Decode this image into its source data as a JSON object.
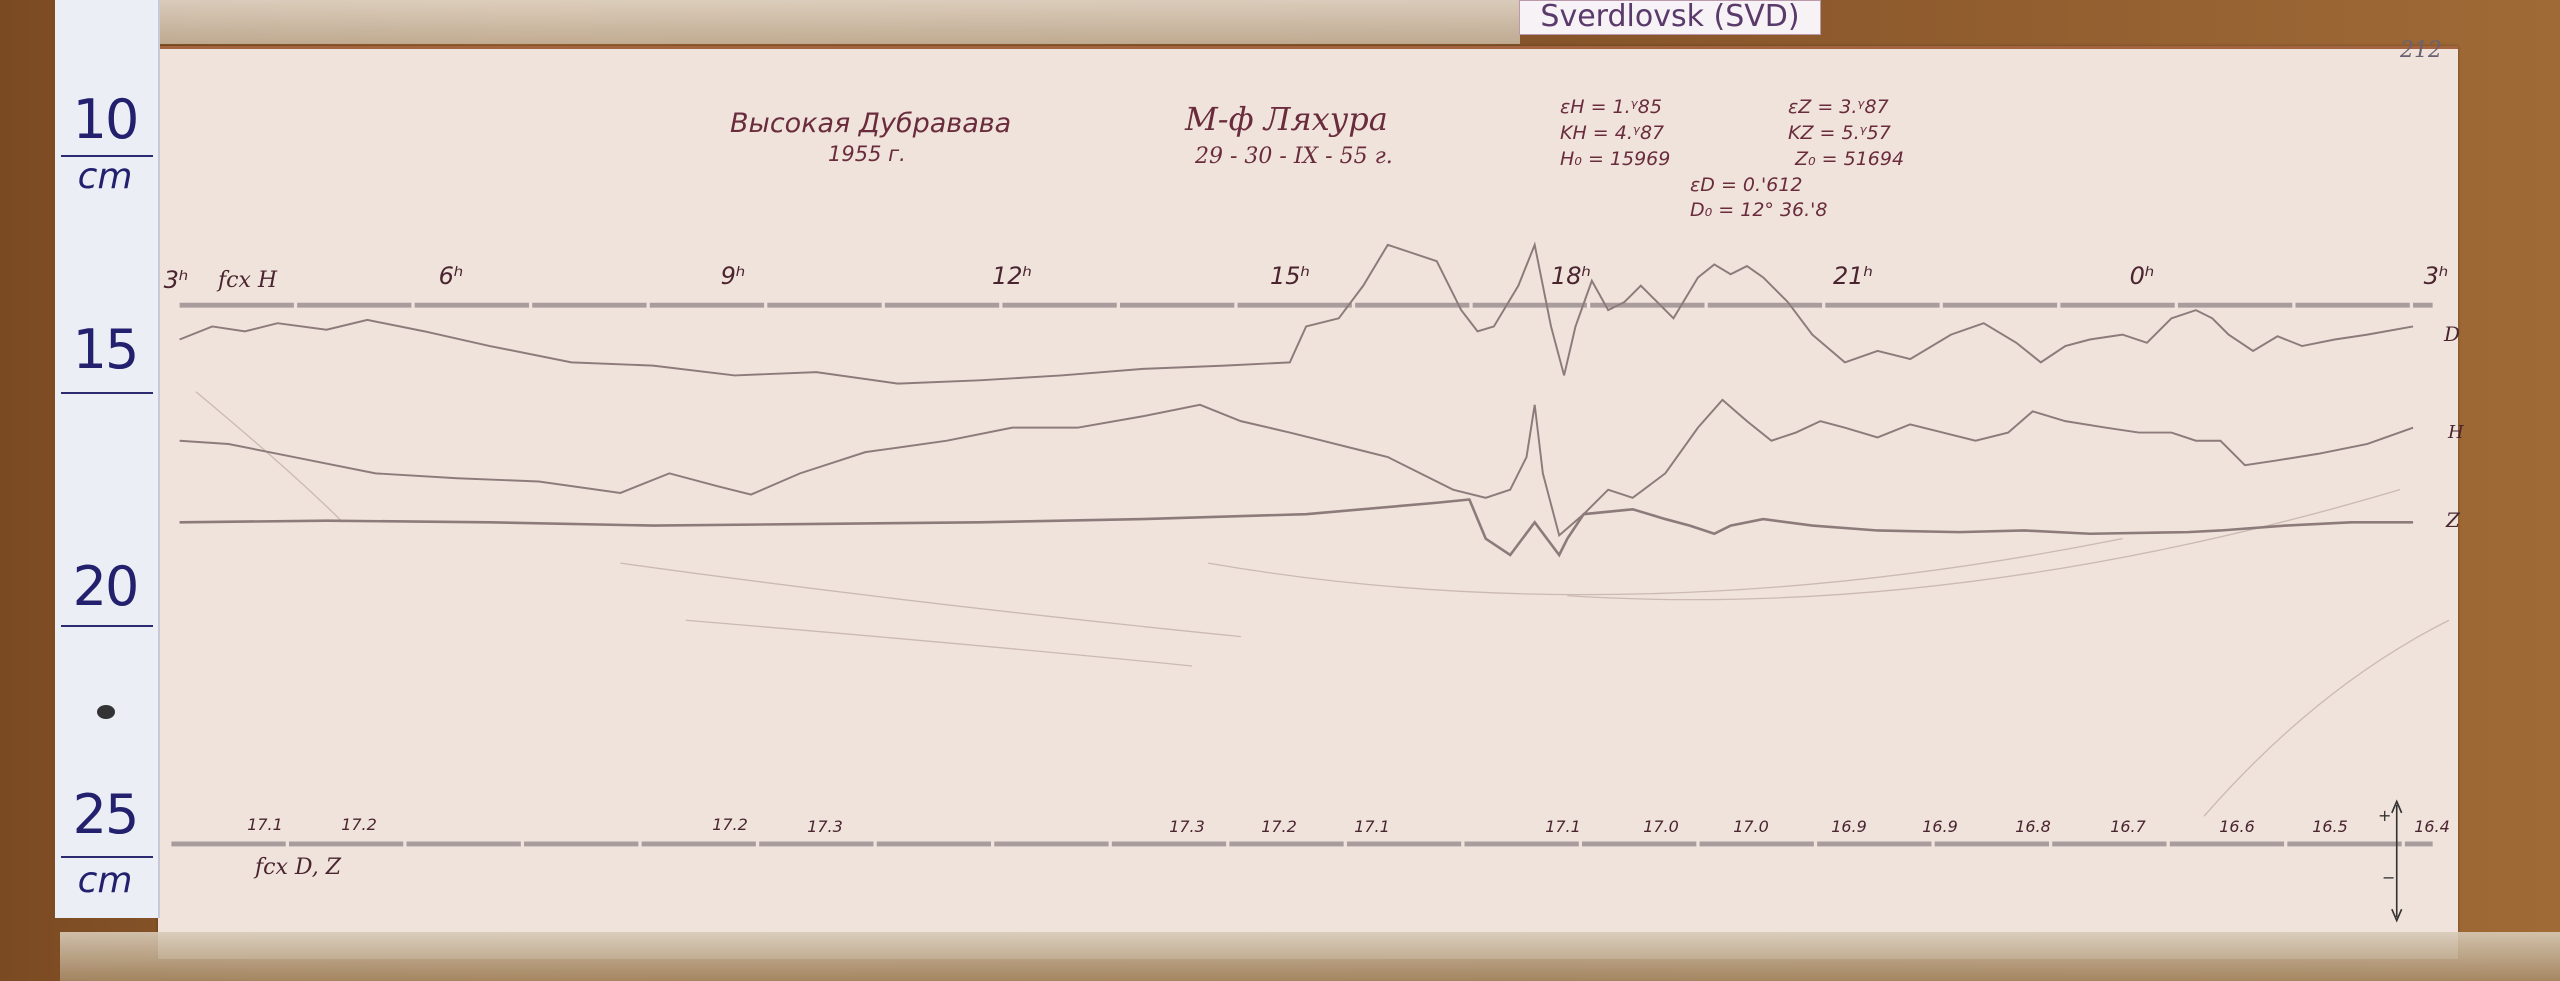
{
  "station_label": "Sverdlovsk (SVD)",
  "sheet_number": "212",
  "ruler": {
    "labels": [
      "10",
      "cm",
      "15",
      "20",
      "25",
      "cm"
    ]
  },
  "header": {
    "observatory": "Высокая Дубравава",
    "year": "1955 г.",
    "instrument": "М-ф Ляхура",
    "dates": "29 - 30 - IX - 55 г.",
    "constants": {
      "eps_h": "εH = 1.ᵞ85",
      "k_h": "KH = 4.ᵞ87",
      "h0": "H₀ = 15969",
      "eps_z": "εZ = 3.ᵞ87",
      "k_z": "KZ = 5.ᵞ57",
      "z0": "Z₀ = 51694",
      "eps_d": "εD = 0.'612",
      "d0": "D₀ = 12° 36.'8"
    }
  },
  "time_axis": {
    "label_fix_h": "fcx H",
    "hours": [
      "3ʰ",
      "6ʰ",
      "9ʰ",
      "12ʰ",
      "15ʰ",
      "18ʰ",
      "21ʰ",
      "0ʰ",
      "3ʰ"
    ]
  },
  "trace_labels": {
    "d": "D",
    "h": "H",
    "z": "Z"
  },
  "baseline": {
    "label_fix_dz": "fcx D, Z",
    "temperatures": [
      "17.1",
      "17.2",
      "17.2",
      "17.3",
      "17.3",
      "17.2",
      "17.1",
      "17.1",
      "17.0",
      "17.0",
      "16.9",
      "16.9",
      "16.8",
      "16.7",
      "16.6",
      "16.5",
      "16.4"
    ],
    "scale_plus": "+",
    "scale_minus": "−"
  },
  "colors": {
    "ink": "#6a2c3c",
    "trace": "#8d7b7b",
    "paper": "#efe3dc",
    "ruler_ink": "#23206e"
  }
}
